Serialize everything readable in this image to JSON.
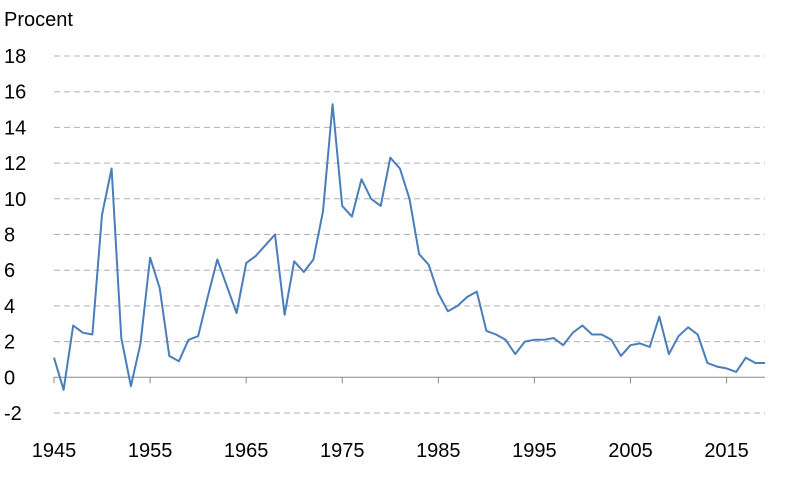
{
  "chart_data": {
    "type": "line",
    "title": "",
    "ylabel": "Procent",
    "xlabel": "",
    "xlim": [
      1945,
      2019
    ],
    "ylim": [
      -2,
      18
    ],
    "y_ticks": [
      18,
      16,
      14,
      12,
      10,
      8,
      6,
      4,
      2,
      0,
      -2
    ],
    "x_ticks": [
      1945,
      1955,
      1965,
      1975,
      1985,
      1995,
      2005,
      2015
    ],
    "grid": "horizontal-dashed",
    "colors": {
      "line": "#4a7ebb",
      "grid": "#b0b0b0",
      "axis": "#888888"
    },
    "series": [
      {
        "x": [
          1945,
          1946,
          1947,
          1948,
          1949,
          1950,
          1951,
          1952,
          1953,
          1954,
          1955,
          1956,
          1957,
          1958,
          1959,
          1960,
          1961,
          1962,
          1963,
          1964,
          1965,
          1966,
          1967,
          1968,
          1969,
          1970,
          1971,
          1972,
          1973,
          1974,
          1975,
          1976,
          1977,
          1978,
          1979,
          1980,
          1981,
          1982,
          1983,
          1984,
          1985,
          1986,
          1987,
          1988,
          1989,
          1990,
          1991,
          1992,
          1993,
          1994,
          1995,
          1996,
          1997,
          1998,
          1999,
          2000,
          2001,
          2002,
          2003,
          2004,
          2005,
          2006,
          2007,
          2008,
          2009,
          2010,
          2011,
          2012,
          2013,
          2014,
          2015,
          2016,
          2017,
          2018,
          2019
        ],
        "values": [
          1.1,
          -0.7,
          2.9,
          2.5,
          2.4,
          9.1,
          11.7,
          2.2,
          -0.5,
          1.9,
          6.7,
          5.0,
          1.2,
          0.9,
          2.1,
          2.3,
          4.5,
          6.6,
          5.1,
          3.6,
          6.4,
          6.8,
          7.4,
          8.0,
          3.5,
          6.5,
          5.9,
          6.6,
          9.3,
          15.3,
          9.6,
          9.0,
          11.1,
          10.0,
          9.6,
          12.3,
          11.7,
          10.0,
          6.9,
          6.3,
          4.7,
          3.7,
          4.0,
          4.5,
          4.8,
          2.6,
          2.4,
          2.1,
          1.3,
          2.0,
          2.1,
          2.1,
          2.2,
          1.8,
          2.5,
          2.9,
          2.4,
          2.4,
          2.1,
          1.2,
          1.8,
          1.9,
          1.7,
          3.4,
          1.3,
          2.3,
          2.8,
          2.4,
          0.8,
          0.6,
          0.5,
          0.3,
          1.1,
          0.8,
          0.8
        ]
      }
    ]
  }
}
